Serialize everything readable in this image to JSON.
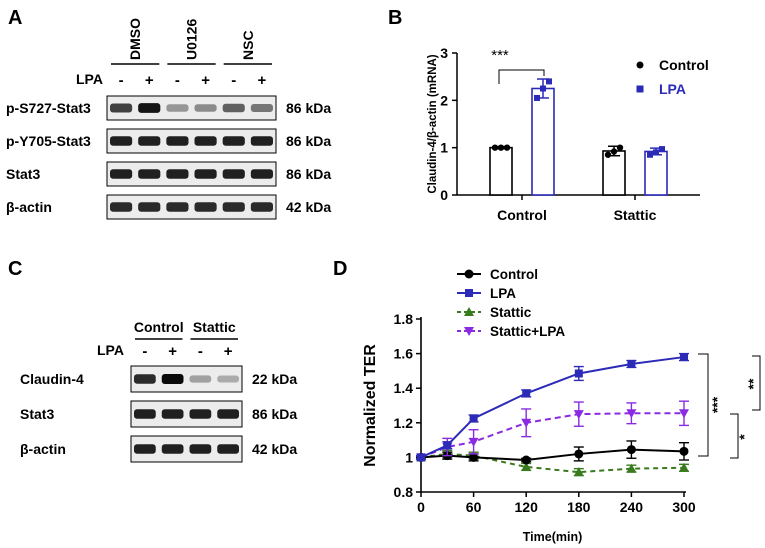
{
  "panels": {
    "a": {
      "letter": "A",
      "groups": [
        "DMSO",
        "U0126",
        "NSC"
      ],
      "lpa_label": "LPA",
      "lpa_signs": [
        "-",
        "+",
        "-",
        "+",
        "-",
        "+"
      ],
      "rows": [
        {
          "label": "p-S727-Stat3",
          "size": "86 kDa",
          "intensity": [
            0.75,
            0.95,
            0.35,
            0.4,
            0.6,
            0.5
          ]
        },
        {
          "label": "p-Y705-Stat3",
          "size": "86 kDa",
          "intensity": [
            0.9,
            0.9,
            0.9,
            0.9,
            0.9,
            0.9
          ]
        },
        {
          "label": "Stat3",
          "size": "86 kDa",
          "intensity": [
            0.9,
            0.9,
            0.9,
            0.9,
            0.9,
            0.9
          ]
        },
        {
          "label": "β-actin",
          "size": "42 kDa",
          "intensity": [
            0.85,
            0.85,
            0.85,
            0.85,
            0.85,
            0.85
          ]
        }
      ]
    },
    "b": {
      "letter": "B",
      "significance": "***",
      "legend": [
        {
          "name": "Control",
          "color": "#000000"
        },
        {
          "name": "LPA",
          "color": "#2b2bb8"
        }
      ]
    },
    "c": {
      "letter": "C",
      "groups": [
        "Control",
        "Stattic"
      ],
      "lpa_label": "LPA",
      "lpa_signs": [
        "-",
        "+",
        "-",
        "+"
      ],
      "rows": [
        {
          "label": "Claudin-4",
          "size": "22 kDa",
          "intensity": [
            0.85,
            1.0,
            0.3,
            0.25
          ]
        },
        {
          "label": "Stat3",
          "size": "86 kDa",
          "intensity": [
            0.9,
            0.9,
            0.9,
            0.9
          ]
        },
        {
          "label": "β-actin",
          "size": "42 kDa",
          "intensity": [
            0.9,
            0.9,
            0.9,
            0.9
          ]
        }
      ]
    },
    "d": {
      "letter": "D",
      "significance_right": [
        "**",
        "***",
        "*"
      ],
      "legend": [
        {
          "name": "Control",
          "color": "#000000",
          "marker": "circle"
        },
        {
          "name": "LPA",
          "color": "#2b2bb8",
          "marker": "square"
        },
        {
          "name": "Stattic",
          "color": "#3a7a1e",
          "marker": "triangle-up"
        },
        {
          "name": "Stattic+LPA",
          "color": "#8a2be2",
          "marker": "triangle-down"
        }
      ]
    }
  },
  "chart_data": [
    {
      "type": "bar",
      "panel": "B",
      "categories": [
        "Control",
        "Stattic"
      ],
      "series": [
        {
          "name": "Control",
          "color": "#000000",
          "values": [
            1.0,
            0.93
          ],
          "errors": [
            0.02,
            0.1
          ],
          "points": [
            [
              1.0,
              1.0,
              1.0
            ],
            [
              0.85,
              0.92,
              1.0
            ]
          ]
        },
        {
          "name": "LPA",
          "color": "#2b2bb8",
          "values": [
            2.25,
            0.92
          ],
          "errors": [
            0.2,
            0.07
          ],
          "points": [
            [
              2.05,
              2.25,
              2.4
            ],
            [
              0.85,
              0.9,
              0.97
            ]
          ]
        }
      ],
      "ylabel": "Claudin-4/β-actin (mRNA)",
      "yticks": [
        0,
        1,
        2,
        3
      ],
      "ylim": [
        0,
        3
      ]
    },
    {
      "type": "line",
      "panel": "D",
      "x": [
        0,
        30,
        60,
        120,
        180,
        240,
        300
      ],
      "series": [
        {
          "name": "Control",
          "color": "#000000",
          "values": [
            1.0,
            1.01,
            1.0,
            0.985,
            1.02,
            1.045,
            1.035
          ],
          "errors": [
            0.01,
            0.02,
            0.02,
            0.01,
            0.04,
            0.05,
            0.05
          ]
        },
        {
          "name": "LPA",
          "color": "#2b2bb8",
          "values": [
            1.0,
            1.07,
            1.225,
            1.37,
            1.485,
            1.54,
            1.58
          ],
          "errors": [
            0.01,
            0.02,
            0.02,
            0.02,
            0.04,
            0.02,
            0.02
          ]
        },
        {
          "name": "Stattic",
          "color": "#3a7a1e",
          "values": [
            1.0,
            1.02,
            1.01,
            0.945,
            0.915,
            0.935,
            0.94
          ],
          "errors": [
            0.01,
            0.02,
            0.02,
            0.02,
            0.02,
            0.02,
            0.02
          ]
        },
        {
          "name": "Stattic+LPA",
          "color": "#8a2be2",
          "values": [
            1.0,
            1.06,
            1.09,
            1.2,
            1.25,
            1.255,
            1.255
          ],
          "errors": [
            0.01,
            0.05,
            0.07,
            0.08,
            0.07,
            0.06,
            0.07
          ]
        }
      ],
      "xlabel": "Time(min)",
      "ylabel": "Normalized TER",
      "xticks": [
        0,
        60,
        120,
        180,
        240,
        300
      ],
      "yticks": [
        0.8,
        1.0,
        1.2,
        1.4,
        1.6,
        1.8
      ],
      "xlim": [
        0,
        300
      ],
      "ylim": [
        0.8,
        1.8
      ]
    }
  ]
}
